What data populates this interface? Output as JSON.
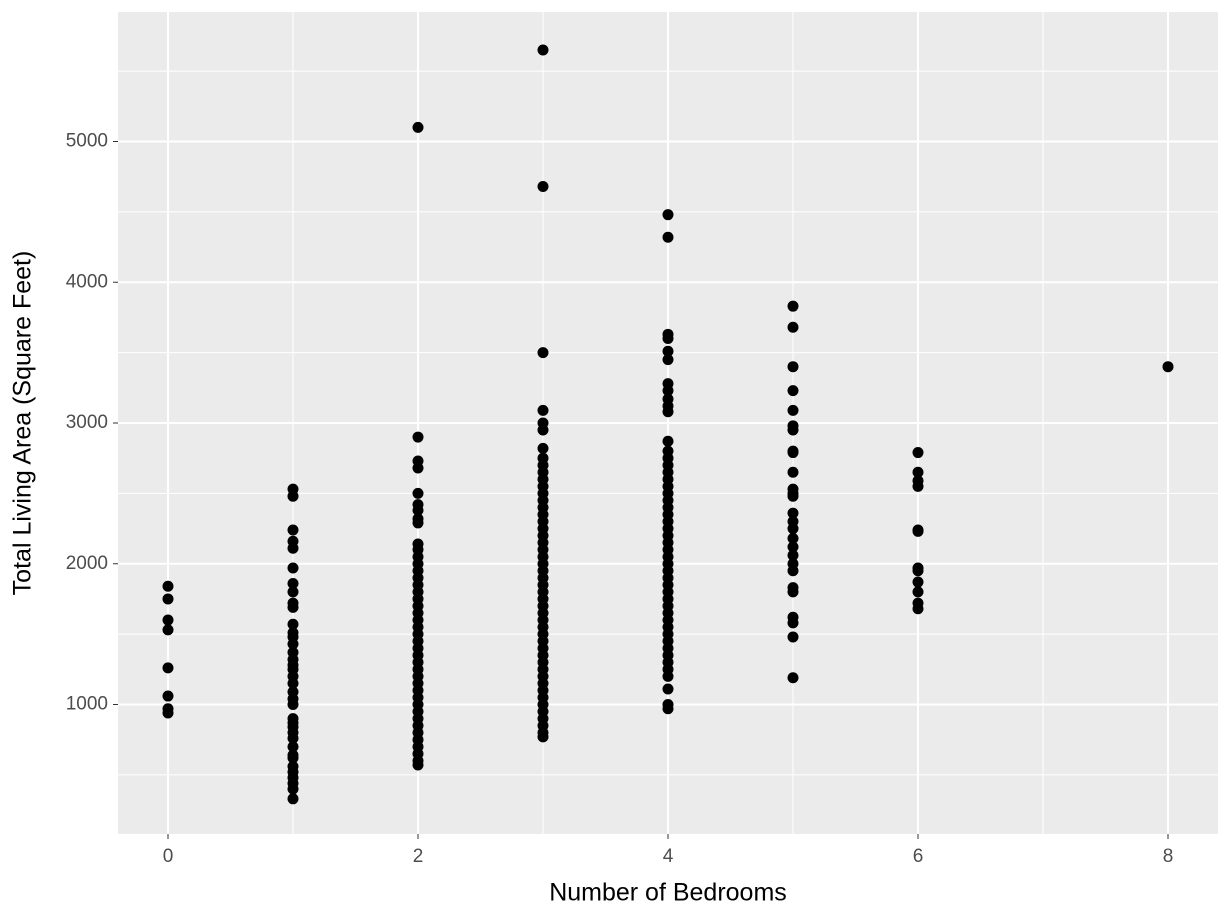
{
  "chart_data": {
    "type": "scatter",
    "x_label": "Number of Bedrooms",
    "y_label": "Total Living Area (Square Feet)",
    "color": "#000000",
    "xlim": [
      -0.4,
      8.4
    ],
    "ylim": [
      80,
      5920
    ],
    "xticks": [
      0,
      2,
      4,
      6,
      8
    ],
    "yticks": [
      1000,
      2000,
      3000,
      4000,
      5000
    ],
    "x_minor_ticks": [
      1,
      3,
      5,
      7
    ],
    "y_minor_ticks": [
      500,
      1500,
      2500,
      3500,
      4500,
      5500
    ],
    "grid": true,
    "x": [
      0,
      0,
      0,
      0,
      0,
      0,
      0,
      0,
      1,
      1,
      1,
      1,
      1,
      1,
      1,
      1,
      1,
      1,
      1,
      1,
      1,
      1,
      1,
      1,
      1,
      1,
      1,
      1,
      1,
      1,
      1,
      1,
      1,
      1,
      1,
      1,
      1,
      1,
      1,
      1,
      1,
      1,
      1,
      1,
      1,
      2,
      2,
      2,
      2,
      2,
      2,
      2,
      2,
      2,
      2,
      2,
      2,
      2,
      2,
      2,
      2,
      2,
      2,
      2,
      2,
      2,
      2,
      2,
      2,
      2,
      2,
      2,
      2,
      2,
      2,
      2,
      2,
      2,
      2,
      2,
      2,
      2,
      2,
      2,
      2,
      2,
      2,
      3,
      3,
      3,
      3,
      3,
      3,
      3,
      3,
      3,
      3,
      3,
      3,
      3,
      3,
      3,
      3,
      3,
      3,
      3,
      3,
      3,
      3,
      3,
      3,
      3,
      3,
      3,
      3,
      3,
      3,
      3,
      3,
      3,
      3,
      3,
      3,
      3,
      3,
      3,
      3,
      3,
      3,
      3,
      3,
      3,
      3,
      3,
      3,
      4,
      4,
      4,
      4,
      4,
      4,
      4,
      4,
      4,
      4,
      4,
      4,
      4,
      4,
      4,
      4,
      4,
      4,
      4,
      4,
      4,
      4,
      4,
      4,
      4,
      4,
      4,
      4,
      4,
      4,
      4,
      4,
      4,
      4,
      4,
      4,
      4,
      4,
      4,
      4,
      4,
      4,
      4,
      4,
      4,
      4,
      4,
      4,
      5,
      5,
      5,
      5,
      5,
      5,
      5,
      5,
      5,
      5,
      5,
      5,
      5,
      5,
      5,
      5,
      5,
      5,
      5,
      5,
      5,
      5,
      5,
      5,
      5,
      5,
      5,
      6,
      6,
      6,
      6,
      6,
      6,
      6,
      6,
      6,
      6,
      6,
      6,
      8
    ],
    "values": [
      1840,
      1750,
      1600,
      1530,
      1260,
      1060,
      970,
      940,
      2530,
      2480,
      2240,
      2160,
      2110,
      1970,
      1860,
      1800,
      1720,
      1690,
      1570,
      1510,
      1480,
      1430,
      1370,
      1320,
      1280,
      1250,
      1200,
      1150,
      1090,
      1040,
      1000,
      900,
      870,
      840,
      800,
      760,
      700,
      640,
      620,
      560,
      520,
      480,
      440,
      400,
      330,
      5100,
      2900,
      2730,
      2680,
      2500,
      2420,
      2380,
      2320,
      2290,
      2140,
      2100,
      2050,
      2000,
      1950,
      1900,
      1850,
      1800,
      1750,
      1700,
      1650,
      1600,
      1550,
      1500,
      1450,
      1400,
      1350,
      1300,
      1250,
      1200,
      1150,
      1100,
      1050,
      1000,
      950,
      900,
      850,
      800,
      750,
      700,
      650,
      600,
      570,
      5650,
      4680,
      3500,
      3090,
      3000,
      2950,
      2820,
      2750,
      2700,
      2650,
      2600,
      2550,
      2500,
      2450,
      2400,
      2350,
      2300,
      2250,
      2200,
      2150,
      2100,
      2050,
      2000,
      1950,
      1900,
      1850,
      1800,
      1750,
      1700,
      1650,
      1600,
      1550,
      1500,
      1450,
      1400,
      1350,
      1300,
      1250,
      1200,
      1150,
      1100,
      1050,
      1000,
      950,
      900,
      850,
      800,
      770,
      4480,
      4320,
      3630,
      3600,
      3510,
      3450,
      3280,
      3230,
      3170,
      3120,
      3080,
      2870,
      2800,
      2750,
      2700,
      2650,
      2600,
      2550,
      2500,
      2450,
      2400,
      2350,
      2300,
      2250,
      2200,
      2150,
      2100,
      2050,
      2000,
      1950,
      1900,
      1850,
      1800,
      1750,
      1700,
      1650,
      1600,
      1550,
      1500,
      1450,
      1400,
      1350,
      1300,
      1250,
      1200,
      1110,
      1000,
      970,
      3830,
      3680,
      3400,
      3230,
      3090,
      2980,
      2950,
      2800,
      2790,
      2650,
      2530,
      2500,
      2480,
      2360,
      2300,
      2250,
      2180,
      2120,
      2060,
      2000,
      1950,
      1830,
      1800,
      1620,
      1580,
      1480,
      1190,
      2790,
      2650,
      2590,
      2550,
      2240,
      2230,
      1970,
      1950,
      1870,
      1800,
      1720,
      1680,
      3400
    ]
  }
}
